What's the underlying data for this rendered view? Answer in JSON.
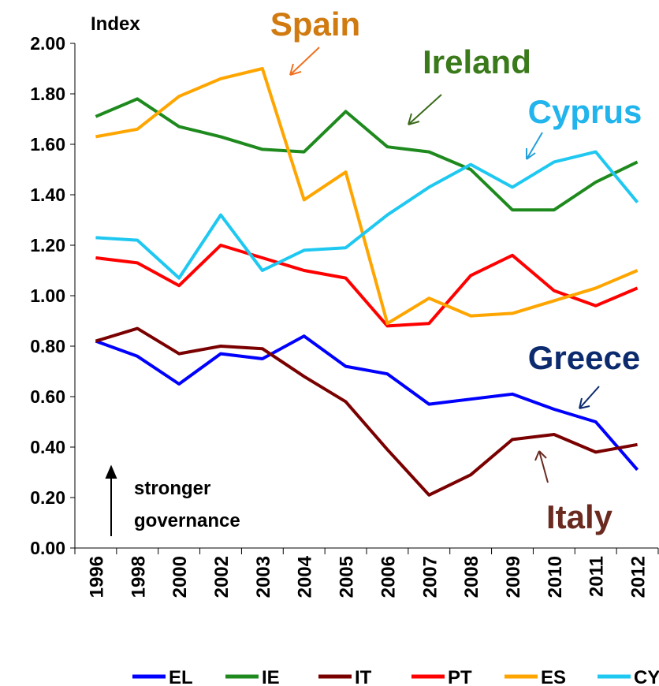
{
  "chart_data": {
    "type": "line",
    "categories": [
      "1996",
      "1998",
      "2000",
      "2002",
      "2003",
      "2004",
      "2005",
      "2006",
      "2007",
      "2008",
      "2009",
      "2010",
      "2011",
      "2012"
    ],
    "series": [
      {
        "name": "EL",
        "color": "#0000ff",
        "values": [
          0.82,
          0.76,
          0.65,
          0.77,
          0.75,
          0.84,
          0.72,
          0.69,
          0.57,
          0.59,
          0.61,
          0.55,
          0.5,
          0.31
        ]
      },
      {
        "name": "IE",
        "color": "#1e8a1e",
        "values": [
          1.71,
          1.78,
          1.67,
          1.63,
          1.58,
          1.57,
          1.73,
          1.59,
          1.57,
          1.5,
          1.34,
          1.34,
          1.45,
          1.53
        ]
      },
      {
        "name": "IT",
        "color": "#7a0000",
        "values": [
          0.82,
          0.87,
          0.77,
          0.8,
          0.79,
          0.68,
          0.58,
          0.39,
          0.21,
          0.29,
          0.43,
          0.45,
          0.38,
          0.41
        ]
      },
      {
        "name": "PT",
        "color": "#ff0000",
        "values": [
          1.15,
          1.13,
          1.04,
          1.2,
          1.15,
          1.1,
          1.07,
          0.88,
          0.89,
          1.08,
          1.16,
          1.02,
          0.96,
          1.03
        ]
      },
      {
        "name": "ES",
        "color": "#ffa500",
        "values": [
          1.63,
          1.66,
          1.79,
          1.86,
          1.9,
          1.38,
          1.49,
          0.89,
          0.99,
          0.92,
          0.93,
          0.98,
          1.03,
          1.1
        ]
      },
      {
        "name": "CY",
        "color": "#1ec8f0",
        "values": [
          1.23,
          1.22,
          1.07,
          1.32,
          1.1,
          1.18,
          1.19,
          1.32,
          1.43,
          1.52,
          1.43,
          1.53,
          1.57,
          1.37
        ]
      }
    ],
    "ylim": [
      0,
      2
    ],
    "yticks": [
      {
        "value": 0,
        "label": "0.00"
      },
      {
        "value": 0.2,
        "label": "0.20"
      },
      {
        "value": 0.4,
        "label": "0.40"
      },
      {
        "value": 0.6,
        "label": "0.60"
      },
      {
        "value": 0.8,
        "label": "0.80"
      },
      {
        "value": 1,
        "label": "1.00"
      },
      {
        "value": 1.2,
        "label": "1.20"
      },
      {
        "value": 1.4,
        "label": "1.40"
      },
      {
        "value": 1.6,
        "label": "1.60"
      },
      {
        "value": 1.8,
        "label": "1.80"
      },
      {
        "value": 2,
        "label": "2.00"
      }
    ],
    "axis_label": "Index",
    "annotations": [
      {
        "text": "Spain",
        "color": "#d07a10"
      },
      {
        "text": "Ireland",
        "color": "#3a7a1a"
      },
      {
        "text": "Cyprus",
        "color": "#22b4ec"
      },
      {
        "text": "Greece",
        "color": "#0c2a6e"
      },
      {
        "text": "Italy",
        "color": "#6a2a20"
      },
      {
        "text": "stronger",
        "color": "#000000"
      },
      {
        "text": "governance",
        "color": "#000000"
      }
    ],
    "legend": "bottom"
  }
}
